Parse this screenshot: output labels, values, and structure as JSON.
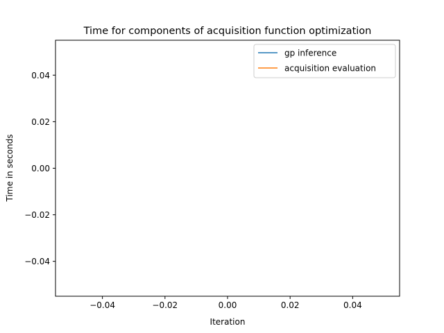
{
  "chart_data": {
    "type": "line",
    "title": "Time for components of acquisition function optimization",
    "xlabel": "Iteration",
    "ylabel": "Time in seconds",
    "xlim": [
      -0.055,
      0.055
    ],
    "ylim": [
      -0.055,
      0.055
    ],
    "xticks": [
      -0.04,
      -0.02,
      0.0,
      0.02,
      0.04
    ],
    "xtick_labels": [
      "−0.04",
      "−0.02",
      "0.00",
      "0.02",
      "0.04"
    ],
    "yticks": [
      -0.04,
      -0.02,
      0.0,
      0.02,
      0.04
    ],
    "ytick_labels": [
      "−0.04",
      "−0.02",
      "0.00",
      "0.02",
      "0.04"
    ],
    "grid": false,
    "legend_position": "top-right",
    "series": [
      {
        "name": "gp inference",
        "color": "#1f77b4",
        "x": [],
        "y": []
      },
      {
        "name": "acquisition evaluation",
        "color": "#ff7f0e",
        "x": [],
        "y": []
      }
    ]
  }
}
